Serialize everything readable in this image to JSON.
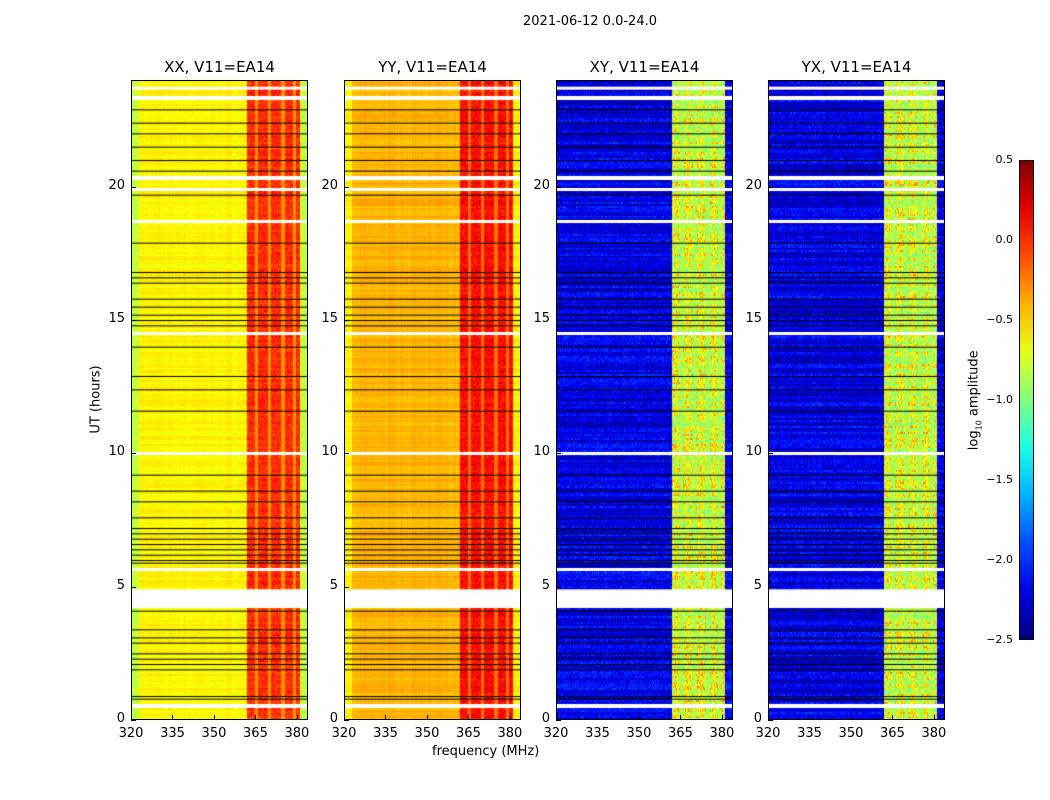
{
  "chart_data": {
    "type": "heatmap",
    "title": "2021-06-12 0.0-24.0",
    "xlabel": "frequency (MHz)",
    "ylabel": "UT (hours)",
    "xlim": [
      320,
      384
    ],
    "ylim": [
      0,
      24
    ],
    "xticks": [
      "320",
      "335",
      "350",
      "365",
      "380"
    ],
    "yticks": [
      "0",
      "5",
      "10",
      "15",
      "20"
    ],
    "colormap": "jet",
    "colorbar": {
      "label": "log10 amplitude",
      "label_main": "log",
      "label_sub": "10",
      "label_rest": " amplitude",
      "range": [
        -2.5,
        0.5
      ],
      "ticks": [
        "0.5",
        "0.0",
        "−0.5",
        "−1.0",
        "−1.5",
        "−2.0",
        "−2.5"
      ]
    },
    "panels": [
      {
        "title": "XX, V11=EA14",
        "low_band_level": -0.6,
        "rfi_band_level": 0.0,
        "noise": 0.12
      },
      {
        "title": "YY, V11=EA14",
        "low_band_level": -0.4,
        "rfi_band_level": 0.1,
        "noise": 0.12
      },
      {
        "title": "XY, V11=EA14",
        "low_band_level": -2.2,
        "rfi_band_level": -0.7,
        "noise": 0.35
      },
      {
        "title": "YX, V11=EA14",
        "low_band_level": -2.2,
        "rfi_band_level": -0.7,
        "noise": 0.35
      }
    ],
    "rfi_band_mhz": [
      362,
      381
    ],
    "rfi_gap_channels_mhz": [
      365.5,
      370,
      375,
      379
    ],
    "flagged_intervals_hours": [
      [
        0.45,
        0.6
      ],
      [
        4.2,
        4.9
      ],
      [
        5.6,
        5.7
      ],
      [
        9.95,
        10.05
      ],
      [
        14.45,
        14.55
      ],
      [
        18.65,
        18.75
      ],
      [
        19.85,
        19.95
      ],
      [
        20.25,
        20.4
      ],
      [
        23.25,
        23.4
      ],
      [
        23.65,
        23.75
      ]
    ],
    "dark_lines_hours": [
      0.8,
      0.9,
      1.9,
      2.1,
      2.3,
      2.5,
      2.9,
      3.1,
      3.4,
      4.1,
      5.9,
      6.0,
      6.2,
      6.4,
      6.6,
      6.8,
      7.0,
      7.2,
      7.6,
      8.2,
      8.6,
      9.2,
      11.6,
      12.4,
      12.9,
      14.0,
      14.8,
      15.0,
      15.2,
      15.5,
      15.8,
      16.4,
      16.6,
      16.8,
      17.9,
      19.7,
      20.6,
      21.0,
      21.5,
      22.0,
      22.4,
      22.9
    ]
  }
}
